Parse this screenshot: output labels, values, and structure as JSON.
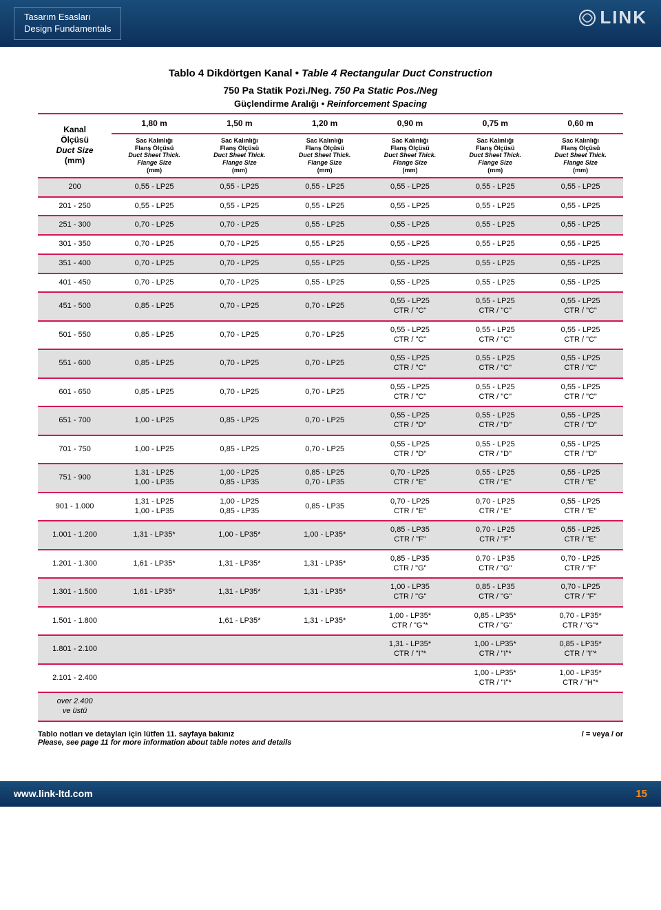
{
  "banner": {
    "title_tr": "Tasarım Esasları",
    "title_en": "Design Fundamentals",
    "logo_text": "LINK"
  },
  "colors": {
    "banner_top": "#1a4d7a",
    "banner_bottom": "#0d2f5a",
    "rule": "#d4145a",
    "shade": "#e0e0e0",
    "page_num": "#f58b20"
  },
  "table": {
    "title_tr": "Tablo 4 Dikdörtgen Kanal",
    "title_en": "Table 4 Rectangular Duct Construction",
    "subtitle_tr": "750 Pa Statik Pozi./Neg.",
    "subtitle_en": "750 Pa Static Pos./Neg",
    "reinf_tr": "Güçlendirme Aralığı",
    "reinf_en": "Reinforcement Spacing",
    "side_header": {
      "l1": "Kanal",
      "l2": "Ölçüsü",
      "l3": "Duct Size",
      "l4": "(mm)"
    },
    "col_headers": [
      "1,80 m",
      "1,50 m",
      "1,20 m",
      "0,90 m",
      "0,75 m",
      "0,60 m"
    ],
    "sub_header": {
      "l1": "Sac Kalınlığı",
      "l2": "Flanş Ölçüsü",
      "l3": "Duct Sheet Thick.",
      "l4": "Flange Size",
      "l5": "(mm)"
    },
    "rows": [
      {
        "s": true,
        "size": "200",
        "c": [
          "0,55 - LP25",
          "0,55 - LP25",
          "0,55 - LP25",
          "0,55 - LP25",
          "0,55 - LP25",
          "0,55 - LP25"
        ]
      },
      {
        "s": false,
        "size": "201 - 250",
        "c": [
          "0,55 - LP25",
          "0,55 - LP25",
          "0,55 - LP25",
          "0,55 - LP25",
          "0,55 - LP25",
          "0,55 - LP25"
        ]
      },
      {
        "s": true,
        "size": "251 - 300",
        "c": [
          "0,70 - LP25",
          "0,70 - LP25",
          "0,55 - LP25",
          "0,55 - LP25",
          "0,55 - LP25",
          "0,55 - LP25"
        ]
      },
      {
        "s": false,
        "size": "301 - 350",
        "c": [
          "0,70 - LP25",
          "0,70 - LP25",
          "0,55 - LP25",
          "0,55 - LP25",
          "0,55 - LP25",
          "0,55 - LP25"
        ]
      },
      {
        "s": true,
        "size": "351 - 400",
        "c": [
          "0,70 - LP25",
          "0,70 - LP25",
          "0,55 - LP25",
          "0,55 - LP25",
          "0,55 - LP25",
          "0,55 - LP25"
        ]
      },
      {
        "s": false,
        "size": "401 - 450",
        "c": [
          "0,70 - LP25",
          "0,70 - LP25",
          "0,55 - LP25",
          "0,55 - LP25",
          "0,55 - LP25",
          "0,55 - LP25"
        ]
      },
      {
        "s": true,
        "size": "451 - 500",
        "c": [
          "0,85 - LP25",
          "0,70 - LP25",
          "0,70 - LP25",
          "0,55 - LP25\nCTR / \"C\"",
          "0,55 - LP25\nCTR / \"C\"",
          "0,55 - LP25\nCTR / \"C\""
        ]
      },
      {
        "s": false,
        "size": "501 - 550",
        "c": [
          "0,85 - LP25",
          "0,70 - LP25",
          "0,70 - LP25",
          "0,55 - LP25\nCTR / \"C\"",
          "0,55 - LP25\nCTR / \"C\"",
          "0,55 - LP25\nCTR / \"C\""
        ]
      },
      {
        "s": true,
        "size": "551 - 600",
        "c": [
          "0,85 - LP25",
          "0,70 - LP25",
          "0,70 - LP25",
          "0,55 - LP25\nCTR / \"C\"",
          "0,55 - LP25\nCTR / \"C\"",
          "0,55 - LP25\nCTR / \"C\""
        ]
      },
      {
        "s": false,
        "size": "601 - 650",
        "c": [
          "0,85 - LP25",
          "0,70 - LP25",
          "0,70 - LP25",
          "0,55 - LP25\nCTR / \"C\"",
          "0,55 - LP25\nCTR / \"C\"",
          "0,55 - LP25\nCTR / \"C\""
        ]
      },
      {
        "s": true,
        "size": "651 - 700",
        "c": [
          "1,00 - LP25",
          "0,85 - LP25",
          "0,70 - LP25",
          "0,55 - LP25\nCTR / \"D\"",
          "0,55 - LP25\nCTR / \"D\"",
          "0,55 - LP25\nCTR / \"D\""
        ]
      },
      {
        "s": false,
        "size": "701 - 750",
        "c": [
          "1,00 - LP25",
          "0,85 - LP25",
          "0,70 - LP25",
          "0,55 - LP25\nCTR / \"D\"",
          "0,55 - LP25\nCTR / \"D\"",
          "0,55 - LP25\nCTR / \"D\""
        ]
      },
      {
        "s": true,
        "size": "751 - 900",
        "c": [
          "1,31 - LP25\n1,00 - LP35",
          "1,00 - LP25\n0,85 - LP35",
          "0,85 - LP25\n0,70 - LP35",
          "0,70 - LP25\nCTR / \"E\"",
          "0,55 - LP25\nCTR / \"E\"",
          "0,55 - LP25\nCTR / \"E\""
        ]
      },
      {
        "s": false,
        "size": "901 - 1.000",
        "c": [
          "1,31 - LP25\n1,00 - LP35",
          "1,00 - LP25\n0,85 - LP35",
          "0,85 - LP35",
          "0,70 - LP25\nCTR / \"E\"",
          "0,70 - LP25\nCTR / \"E\"",
          "0,55 - LP25\nCTR / \"E\""
        ]
      },
      {
        "s": true,
        "size": "1.001 - 1.200",
        "c": [
          "1,31 - LP35*",
          "1,00 - LP35*",
          "1,00 - LP35*",
          "0,85 - LP35\nCTR / \"F\"",
          "0,70 - LP25\nCTR / \"F\"",
          "0,55 - LP25\nCTR / \"E\""
        ]
      },
      {
        "s": false,
        "size": "1.201 - 1.300",
        "c": [
          "1,61 - LP35*",
          "1,31 - LP35*",
          "1,31 - LP35*",
          "0,85 - LP35\nCTR / \"G\"",
          "0,70 - LP35\nCTR / \"G\"",
          "0,70 - LP25\nCTR / \"F\""
        ]
      },
      {
        "s": true,
        "size": "1.301 - 1.500",
        "c": [
          "1,61 - LP35*",
          "1,31 - LP35*",
          "1,31 - LP35*",
          "1,00 - LP35\nCTR / \"G\"",
          "0,85 - LP35\nCTR / \"G\"",
          "0,70 - LP25\nCTR / \"F\""
        ]
      },
      {
        "s": false,
        "size": "1.501 - 1.800",
        "c": [
          "",
          "1,61 - LP35*",
          "1,31 - LP35*",
          "1,00 - LP35*\nCTR / \"G\"*",
          "0,85 - LP35*\nCTR / \"G\"",
          "0,70 - LP35*\nCTR / \"G\"*"
        ]
      },
      {
        "s": true,
        "size": "1.801 - 2.100",
        "c": [
          "",
          "",
          "",
          "1,31 - LP35*\nCTR / \"I\"*",
          "1,00 - LP35*\nCTR / \"I\"*",
          "0,85 - LP35*\nCTR / \"I\"*"
        ]
      },
      {
        "s": false,
        "size": "2.101 - 2.400",
        "c": [
          "",
          "",
          "",
          "",
          "1,00 - LP35*\nCTR / \"I\"*",
          "1,00 - LP35*\nCTR / \"H\"*"
        ]
      },
      {
        "s": true,
        "size": "over 2.400\nve üstü",
        "c": [
          "",
          "",
          "",
          "",
          "",
          ""
        ],
        "over": true
      }
    ]
  },
  "footer": {
    "note_tr": "Tablo notları ve detayları için lütfen 11. sayfaya bakınız",
    "note_en": "Please, see page 11 for more information about table notes and details",
    "legend": "/ = veya / or"
  },
  "bottom": {
    "url": "www.link-ltd.com",
    "page": "15"
  }
}
